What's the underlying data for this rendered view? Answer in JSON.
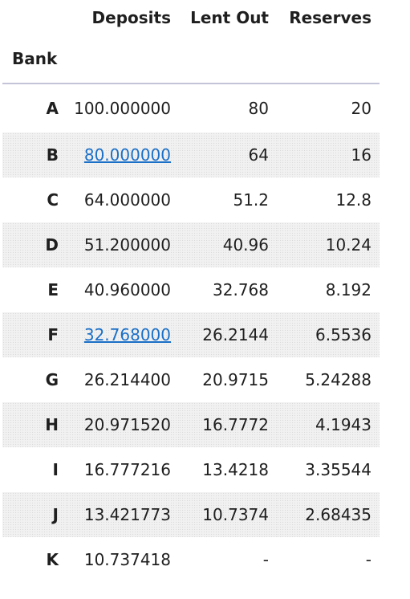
{
  "table": {
    "index_name": "Bank",
    "columns": [
      "Deposits",
      "Lent Out",
      "Reserves"
    ],
    "rows": [
      {
        "bank": "A",
        "deposits": "100.000000",
        "lent_out": "80",
        "reserves": "20",
        "deposits_link": false
      },
      {
        "bank": "B",
        "deposits": "80.000000",
        "lent_out": "64",
        "reserves": "16",
        "deposits_link": true
      },
      {
        "bank": "C",
        "deposits": "64.000000",
        "lent_out": "51.2",
        "reserves": "12.8",
        "deposits_link": false
      },
      {
        "bank": "D",
        "deposits": "51.200000",
        "lent_out": "40.96",
        "reserves": "10.24",
        "deposits_link": false
      },
      {
        "bank": "E",
        "deposits": "40.960000",
        "lent_out": "32.768",
        "reserves": "8.192",
        "deposits_link": false
      },
      {
        "bank": "F",
        "deposits": "32.768000",
        "lent_out": "26.2144",
        "reserves": "6.5536",
        "deposits_link": true
      },
      {
        "bank": "G",
        "deposits": "26.214400",
        "lent_out": "20.9715",
        "reserves": "5.24288",
        "deposits_link": false
      },
      {
        "bank": "H",
        "deposits": "20.971520",
        "lent_out": "16.7772",
        "reserves": "4.1943",
        "deposits_link": false
      },
      {
        "bank": "I",
        "deposits": "16.777216",
        "lent_out": "13.4218",
        "reserves": "3.35544",
        "deposits_link": false
      },
      {
        "bank": "J",
        "deposits": "13.421773",
        "lent_out": "10.7374",
        "reserves": "2.68435",
        "deposits_link": false
      },
      {
        "bank": "K",
        "deposits": "10.737418",
        "lent_out": "-",
        "reserves": "-",
        "deposits_link": false
      }
    ]
  },
  "colors": {
    "text": "#1f1f1f",
    "link": "#1a6fc7",
    "header_rule": "#c4c4d8",
    "stripe": "#f1f1f1"
  }
}
